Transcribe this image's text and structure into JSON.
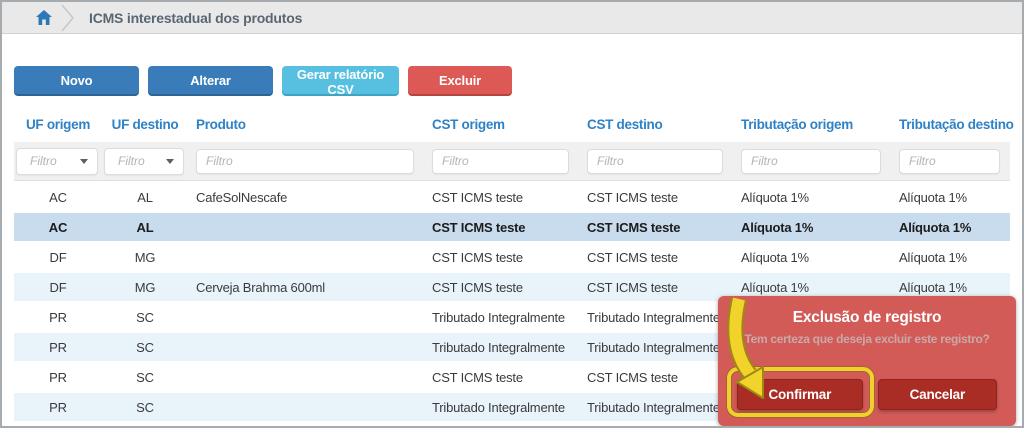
{
  "breadcrumb": {
    "title": "ICMS interestadual dos produtos"
  },
  "toolbar": {
    "buttons": [
      {
        "name": "novo-button",
        "style": "primary",
        "label": "Novo"
      },
      {
        "name": "alterar-button",
        "style": "primary",
        "label": "Alterar"
      },
      {
        "name": "gerar-relatorio-csv-button",
        "style": "info",
        "label": "Gerar relatório CSV"
      },
      {
        "name": "excluir-button",
        "style": "danger",
        "label": "Excluir"
      }
    ]
  },
  "table": {
    "columns": [
      "UF origem",
      "UF destino",
      "Produto",
      "CST origem",
      "CST destino",
      "Tributação origem",
      "Tributação destino"
    ],
    "filter_placeholder": "Filtro",
    "filter_types": [
      "select",
      "select",
      "text",
      "text",
      "text",
      "text",
      "text"
    ],
    "selected_row_index": 1,
    "rows": [
      {
        "selected": false,
        "cells": [
          "AC",
          "AL",
          "CafeSolNescafe",
          "CST ICMS teste",
          "CST ICMS teste",
          "Alíquota 1%",
          "Alíquota 1%"
        ]
      },
      {
        "selected": true,
        "cells": [
          "AC",
          "AL",
          "",
          "CST ICMS teste",
          "CST ICMS teste",
          "Alíquota 1%",
          "Alíquota 1%"
        ]
      },
      {
        "selected": false,
        "cells": [
          "DF",
          "MG",
          "",
          "CST ICMS teste",
          "CST ICMS teste",
          "Alíquota 1%",
          "Alíquota 1%"
        ]
      },
      {
        "selected": false,
        "cells": [
          "DF",
          "MG",
          "Cerveja Brahma 600ml",
          "CST ICMS teste",
          "CST ICMS teste",
          "Alíquota 1%",
          "Alíquota 1%"
        ]
      },
      {
        "selected": false,
        "cells": [
          "PR",
          "SC",
          "",
          "Tributado Integralmente",
          "Tributado Integralmente",
          "",
          ""
        ]
      },
      {
        "selected": false,
        "cells": [
          "PR",
          "SC",
          "",
          "Tributado Integralmente",
          "Tributado Integralmente",
          "",
          ""
        ]
      },
      {
        "selected": false,
        "cells": [
          "PR",
          "SC",
          "",
          "CST ICMS teste",
          "CST ICMS teste",
          "",
          ""
        ]
      },
      {
        "selected": false,
        "cells": [
          "PR",
          "SC",
          "",
          "Tributado Integralmente",
          "Tributado Integralmente",
          "",
          ""
        ]
      }
    ]
  },
  "dialog": {
    "title": "Exclusão de registro",
    "message": "Tem certeza que deseja excluir este registro?",
    "confirm_label": "Confirmar",
    "cancel_label": "Cancelar"
  },
  "colors": {
    "primary_blue": "#3a7cb9",
    "info_cyan": "#57c0e0",
    "danger_red": "#dc5955",
    "header_text_blue": "#2f82c5",
    "row_stripe": "#e9f3fa",
    "row_selected": "#c8dcee",
    "dialog_bg": "#d25b58",
    "dialog_button": "#a92c25",
    "annotation_yellow": "#f0d02c"
  }
}
